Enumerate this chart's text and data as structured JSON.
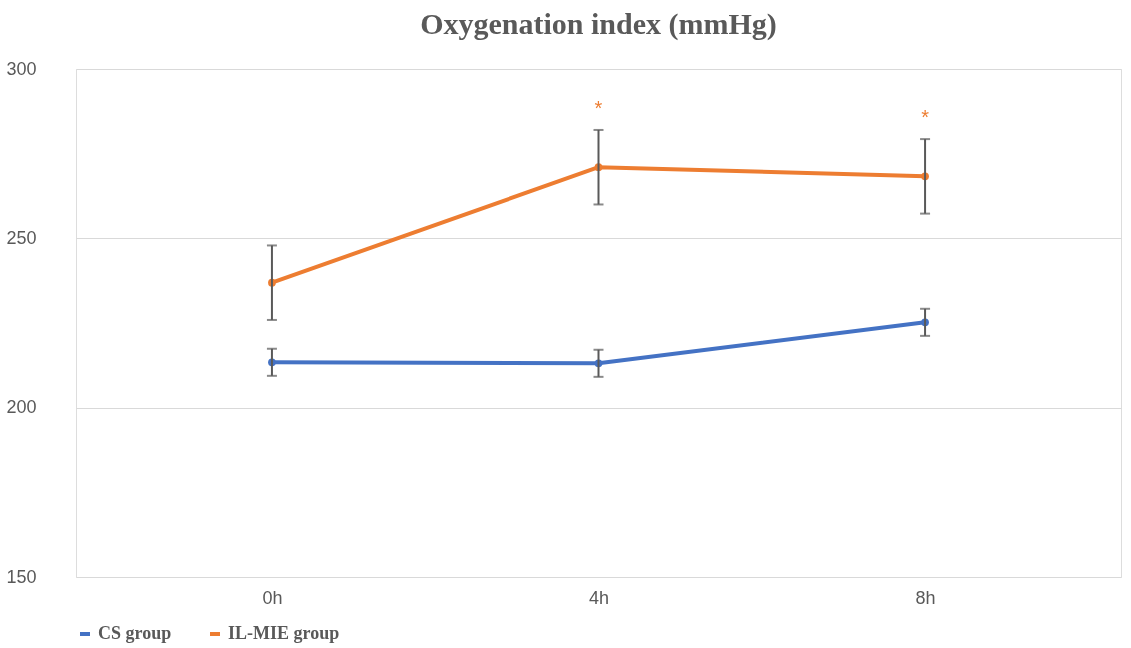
{
  "chart_data": {
    "type": "line",
    "title": "Oxygenation index (mmHg)",
    "categories": [
      "0h",
      "4h",
      "8h"
    ],
    "series": [
      {
        "name": "CS group",
        "color": "#4472c4",
        "values": [
          213.4,
          213.1,
          225.2
        ],
        "errors": [
          4,
          4,
          4
        ]
      },
      {
        "name": "IL-MIE group",
        "color": "#ed7d31",
        "values": [
          236.9,
          271,
          268.3
        ],
        "errors": [
          11,
          11,
          11
        ]
      }
    ],
    "ylim": [
      150,
      300
    ],
    "yticks": [
      150,
      200,
      250,
      300
    ],
    "grid": "y",
    "legend": "bottom",
    "marker": "circle",
    "annotations": [
      {
        "text": "*",
        "x": "4h",
        "y": 271
      },
      {
        "text": "*",
        "x": "8h",
        "y": 268.3
      }
    ]
  }
}
